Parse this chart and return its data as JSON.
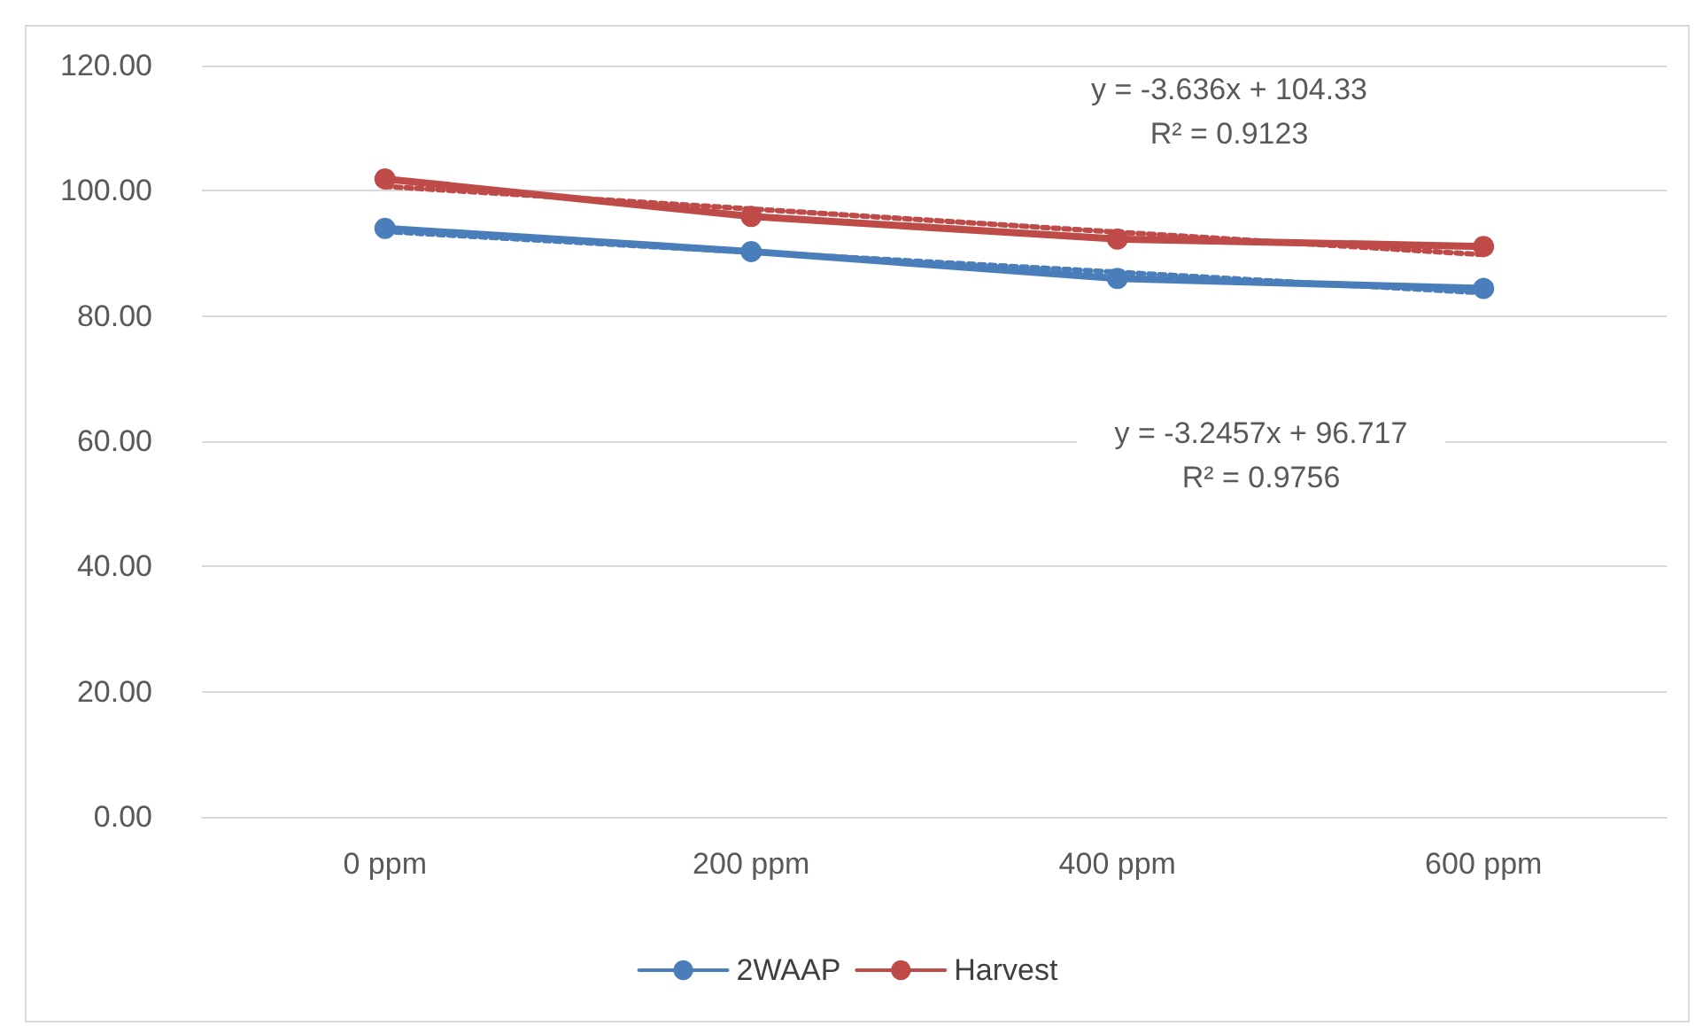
{
  "chart_data": {
    "type": "line",
    "categories": [
      "0 ppm",
      "200 ppm",
      "400 ppm",
      "600 ppm"
    ],
    "series": [
      {
        "name": "2WAAP",
        "color": "#4a7ebb",
        "values": [
          94.0,
          90.3,
          86.0,
          84.4
        ]
      },
      {
        "name": "Harvest",
        "color": "#be4b48",
        "values": [
          101.9,
          95.9,
          92.3,
          91.1
        ]
      },
      {
        "type": "line",
        "x": [
          "0 ppm",
          "200 ppm",
          "400 ppm",
          "600 ppm"
        ],
        "color": "#4a7ebb",
        "values": [
          93.5,
          90.2,
          87.0,
          83.7
        ],
        "line_style": "dotted",
        "marker": "none"
      },
      {
        "type": "line",
        "x": [
          "0 ppm",
          "200 ppm",
          "400 ppm",
          "600 ppm"
        ],
        "color": "#be4b48",
        "values": [
          100.7,
          97.1,
          93.4,
          89.8
        ],
        "line_style": "dotted",
        "marker": "none"
      }
    ],
    "ylim": [
      0,
      120
    ],
    "yticks": [
      {
        "value": 0,
        "label": "0.00"
      },
      {
        "value": 20,
        "label": "20.00"
      },
      {
        "value": 40,
        "label": "40.00"
      },
      {
        "value": 60,
        "label": "60.00"
      },
      {
        "value": 80,
        "label": "80.00"
      },
      {
        "value": 100,
        "label": "100.00"
      },
      {
        "value": 120,
        "label": "120.00"
      }
    ],
    "grid": "y",
    "legend": "bottom",
    "marker": "circle",
    "line_style": "solid",
    "annotations": [
      "y = -3.636x + 104.33\nR² = 0.9123",
      "y = -3.2457x + 96.717\nR² = 0.9756"
    ]
  }
}
